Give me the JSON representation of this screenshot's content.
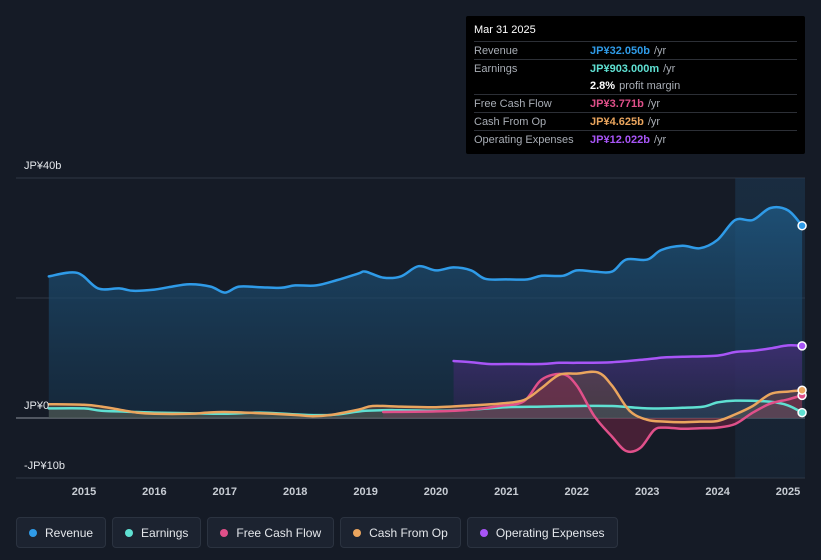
{
  "tooltip": {
    "date": "Mar 31 2025",
    "rows": [
      {
        "label": "Revenue",
        "value": "JP¥32.050b",
        "unit": "/yr",
        "color": "#2f9be8"
      },
      {
        "label": "Earnings",
        "value": "JP¥903.000m",
        "unit": "/yr",
        "color": "#5fe0d2"
      },
      {
        "label": "",
        "value": "2.8%",
        "unit": "profit margin",
        "color": "#ffffff"
      },
      {
        "label": "Free Cash Flow",
        "value": "JP¥3.771b",
        "unit": "/yr",
        "color": "#e0508a"
      },
      {
        "label": "Cash From Op",
        "value": "JP¥4.625b",
        "unit": "/yr",
        "color": "#eaa55e"
      },
      {
        "label": "Operating Expenses",
        "value": "JP¥12.022b",
        "unit": "/yr",
        "color": "#a855f7"
      }
    ]
  },
  "legend": [
    {
      "label": "Revenue",
      "color": "#2f9be8"
    },
    {
      "label": "Earnings",
      "color": "#5fe0d2"
    },
    {
      "label": "Free Cash Flow",
      "color": "#e0508a"
    },
    {
      "label": "Cash From Op",
      "color": "#eaa55e"
    },
    {
      "label": "Operating Expenses",
      "color": "#a855f7"
    }
  ],
  "chart_data": {
    "type": "area",
    "unit": "JP¥ billions",
    "ylim": [
      -10,
      40
    ],
    "y_tick_labels": [
      "JP¥40b",
      "JP¥0",
      "-JP¥10b"
    ],
    "x_tick_labels": [
      "2015",
      "2016",
      "2017",
      "2018",
      "2019",
      "2020",
      "2021",
      "2022",
      "2023",
      "2024",
      "2025"
    ],
    "series": [
      {
        "name": "Revenue",
        "color": "#2f9be8",
        "points": [
          [
            2014.5,
            23.6
          ],
          [
            2014.9,
            24.2
          ],
          [
            2015.2,
            21.6
          ],
          [
            2015.5,
            21.6
          ],
          [
            2015.7,
            21.2
          ],
          [
            2016.0,
            21.4
          ],
          [
            2016.2,
            21.8
          ],
          [
            2016.5,
            22.3
          ],
          [
            2016.8,
            21.9
          ],
          [
            2017.0,
            20.9
          ],
          [
            2017.2,
            21.9
          ],
          [
            2017.5,
            21.8
          ],
          [
            2017.8,
            21.7
          ],
          [
            2018.0,
            22.1
          ],
          [
            2018.3,
            22.1
          ],
          [
            2018.6,
            23.0
          ],
          [
            2018.9,
            24.1
          ],
          [
            2019.0,
            24.4
          ],
          [
            2019.25,
            23.4
          ],
          [
            2019.5,
            23.6
          ],
          [
            2019.75,
            25.3
          ],
          [
            2020.0,
            24.6
          ],
          [
            2020.25,
            25.1
          ],
          [
            2020.5,
            24.6
          ],
          [
            2020.7,
            23.2
          ],
          [
            2021.0,
            23.1
          ],
          [
            2021.3,
            23.1
          ],
          [
            2021.5,
            23.7
          ],
          [
            2021.8,
            23.7
          ],
          [
            2022.0,
            24.6
          ],
          [
            2022.25,
            24.4
          ],
          [
            2022.5,
            24.4
          ],
          [
            2022.7,
            26.4
          ],
          [
            2023.0,
            26.4
          ],
          [
            2023.2,
            28.0
          ],
          [
            2023.5,
            28.7
          ],
          [
            2023.75,
            28.3
          ],
          [
            2024.0,
            29.7
          ],
          [
            2024.25,
            33.0
          ],
          [
            2024.5,
            33.0
          ],
          [
            2024.75,
            35.0
          ],
          [
            2025.0,
            34.6
          ],
          [
            2025.2,
            32.05
          ]
        ]
      },
      {
        "name": "Earnings",
        "color": "#5fe0d2",
        "points": [
          [
            2014.5,
            1.6
          ],
          [
            2015.0,
            1.6
          ],
          [
            2015.25,
            1.2
          ],
          [
            2015.75,
            1.0
          ],
          [
            2016.0,
            0.9
          ],
          [
            2016.5,
            0.8
          ],
          [
            2017.0,
            0.7
          ],
          [
            2017.5,
            0.9
          ],
          [
            2018.0,
            0.6
          ],
          [
            2018.5,
            0.5
          ],
          [
            2019.0,
            1.2
          ],
          [
            2019.5,
            1.3
          ],
          [
            2020.0,
            1.2
          ],
          [
            2020.5,
            1.4
          ],
          [
            2021.0,
            1.8
          ],
          [
            2021.5,
            1.9
          ],
          [
            2022.0,
            2.0
          ],
          [
            2022.5,
            2.0
          ],
          [
            2023.0,
            1.6
          ],
          [
            2023.5,
            1.7
          ],
          [
            2023.8,
            1.9
          ],
          [
            2024.0,
            2.6
          ],
          [
            2024.25,
            2.9
          ],
          [
            2024.75,
            2.7
          ],
          [
            2025.0,
            2.1
          ],
          [
            2025.2,
            0.9
          ]
        ]
      },
      {
        "name": "Free Cash Flow",
        "color": "#e0508a",
        "points": [
          [
            2019.25,
            1.0
          ],
          [
            2020.0,
            1.1
          ],
          [
            2020.5,
            1.4
          ],
          [
            2020.9,
            2.0
          ],
          [
            2021.25,
            2.8
          ],
          [
            2021.5,
            6.4
          ],
          [
            2021.8,
            7.3
          ],
          [
            2022.0,
            5.4
          ],
          [
            2022.25,
            0.3
          ],
          [
            2022.5,
            -3.1
          ],
          [
            2022.7,
            -5.5
          ],
          [
            2022.9,
            -5.0
          ],
          [
            2023.1,
            -2.0
          ],
          [
            2023.25,
            -1.6
          ],
          [
            2023.5,
            -1.8
          ],
          [
            2023.75,
            -1.7
          ],
          [
            2024.0,
            -1.6
          ],
          [
            2024.25,
            -1.0
          ],
          [
            2024.5,
            0.9
          ],
          [
            2024.75,
            2.4
          ],
          [
            2025.0,
            3.1
          ],
          [
            2025.2,
            3.771
          ]
        ]
      },
      {
        "name": "Cash From Op",
        "color": "#eaa55e",
        "points": [
          [
            2014.5,
            2.3
          ],
          [
            2015.0,
            2.2
          ],
          [
            2015.25,
            1.9
          ],
          [
            2015.5,
            1.4
          ],
          [
            2015.75,
            0.9
          ],
          [
            2016.0,
            0.7
          ],
          [
            2016.5,
            0.7
          ],
          [
            2016.75,
            0.9
          ],
          [
            2017.0,
            1.0
          ],
          [
            2017.5,
            0.8
          ],
          [
            2018.0,
            0.5
          ],
          [
            2018.25,
            0.3
          ],
          [
            2018.5,
            0.5
          ],
          [
            2018.9,
            1.4
          ],
          [
            2019.1,
            2.0
          ],
          [
            2019.5,
            1.9
          ],
          [
            2020.0,
            1.8
          ],
          [
            2020.5,
            2.1
          ],
          [
            2020.9,
            2.4
          ],
          [
            2021.25,
            3.0
          ],
          [
            2021.5,
            5.0
          ],
          [
            2021.75,
            7.2
          ],
          [
            2022.0,
            7.4
          ],
          [
            2022.3,
            7.6
          ],
          [
            2022.5,
            5.4
          ],
          [
            2022.75,
            1.2
          ],
          [
            2023.0,
            -0.3
          ],
          [
            2023.25,
            -0.6
          ],
          [
            2023.5,
            -0.7
          ],
          [
            2023.75,
            -0.6
          ],
          [
            2024.0,
            -0.5
          ],
          [
            2024.25,
            0.6
          ],
          [
            2024.5,
            2.0
          ],
          [
            2024.75,
            4.0
          ],
          [
            2025.0,
            4.4
          ],
          [
            2025.2,
            4.625
          ]
        ]
      },
      {
        "name": "Operating Expenses",
        "color": "#a855f7",
        "points": [
          [
            2020.25,
            9.5
          ],
          [
            2020.5,
            9.3
          ],
          [
            2020.75,
            9.0
          ],
          [
            2021.0,
            9.0
          ],
          [
            2021.5,
            9.0
          ],
          [
            2021.75,
            9.2
          ],
          [
            2022.0,
            9.2
          ],
          [
            2022.5,
            9.3
          ],
          [
            2023.0,
            9.8
          ],
          [
            2023.25,
            10.1
          ],
          [
            2023.5,
            10.2
          ],
          [
            2024.0,
            10.4
          ],
          [
            2024.25,
            11.0
          ],
          [
            2024.5,
            11.2
          ],
          [
            2024.75,
            11.6
          ],
          [
            2025.0,
            12.1
          ],
          [
            2025.2,
            12.022
          ]
        ]
      }
    ]
  }
}
